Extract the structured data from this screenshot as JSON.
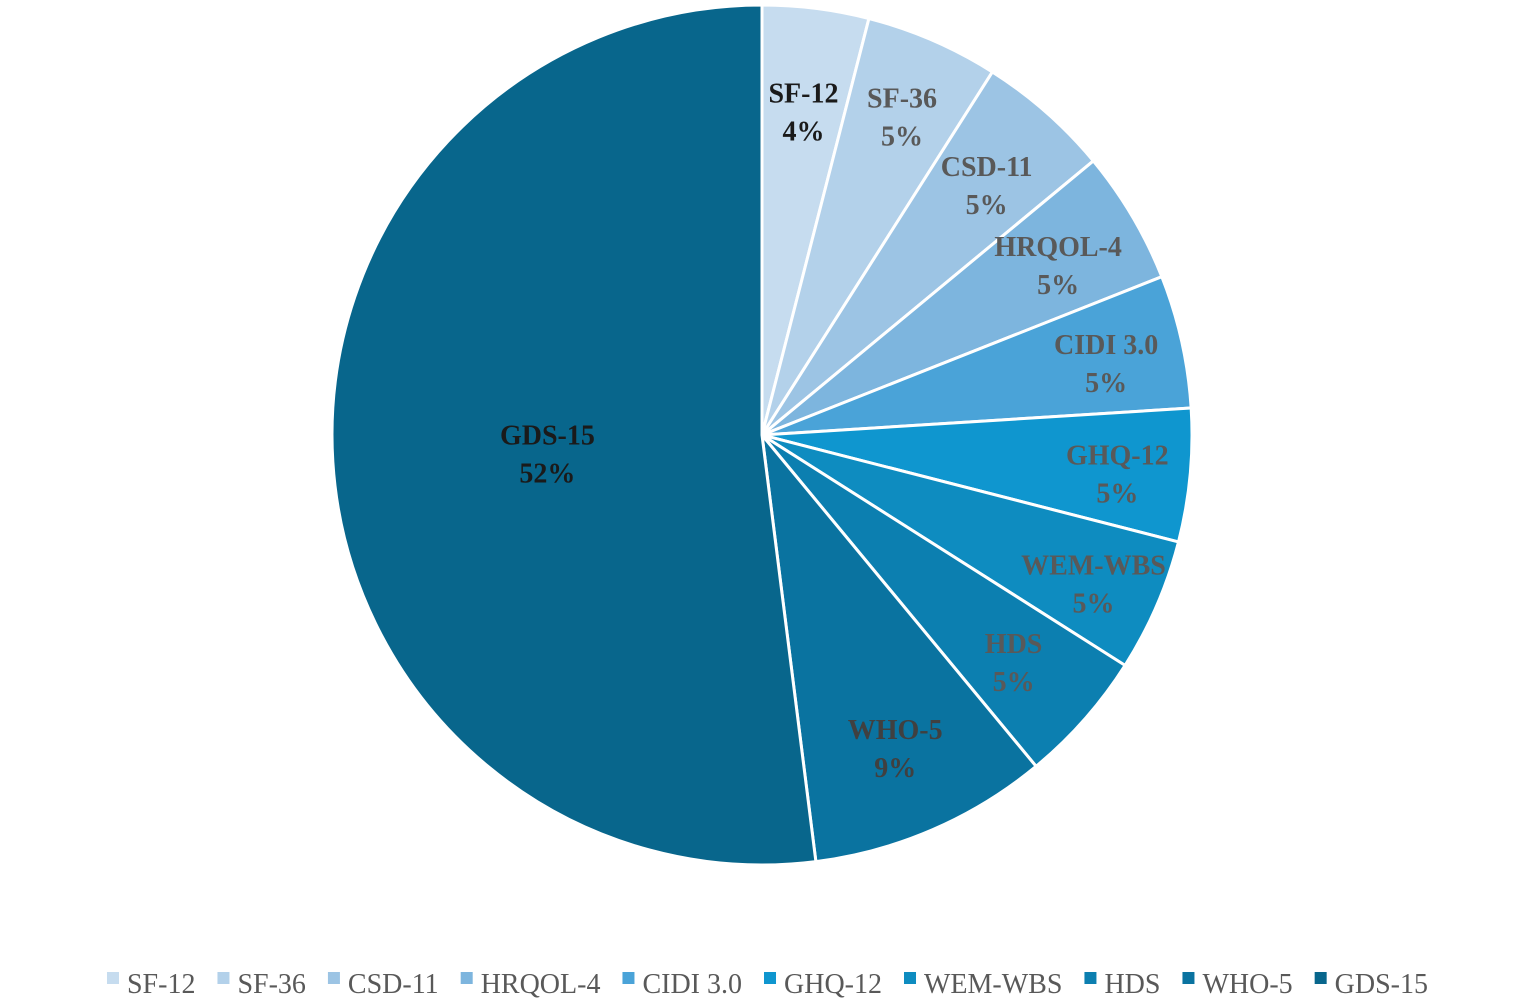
{
  "chart_data": {
    "type": "pie",
    "legend_position": "bottom",
    "slices": [
      {
        "label": "SF-12",
        "value": 4,
        "display": "4%",
        "color": "#c6dcef",
        "label_color": "#1a1a1a"
      },
      {
        "label": "SF-36",
        "value": 5,
        "display": "5%",
        "color": "#b3d1ea",
        "label_color": "#595959"
      },
      {
        "label": "CSD-11",
        "value": 5,
        "display": "5%",
        "color": "#9cc4e4",
        "label_color": "#595959"
      },
      {
        "label": "HRQOL-4",
        "value": 5,
        "display": "5%",
        "color": "#7db5de",
        "label_color": "#595959"
      },
      {
        "label": "CIDI 3.0",
        "value": 5,
        "display": "5%",
        "color": "#4aa3d8",
        "label_color": "#595959"
      },
      {
        "label": "GHQ-12",
        "value": 5,
        "display": "5%",
        "color": "#0f96cf",
        "label_color": "#595959"
      },
      {
        "label": "WEM-WBS",
        "value": 5,
        "display": "5%",
        "color": "#0e8cc0",
        "label_color": "#595959"
      },
      {
        "label": "HDS",
        "value": 5,
        "display": "5%",
        "color": "#0c7fb0",
        "label_color": "#595959"
      },
      {
        "label": "WHO-5",
        "value": 9,
        "display": "9%",
        "color": "#0a73a0",
        "label_color": "#404040"
      },
      {
        "label": "GDS-15",
        "value": 52,
        "display": "52%",
        "color": "#08668c",
        "label_color": "#1a1a1a"
      }
    ]
  }
}
